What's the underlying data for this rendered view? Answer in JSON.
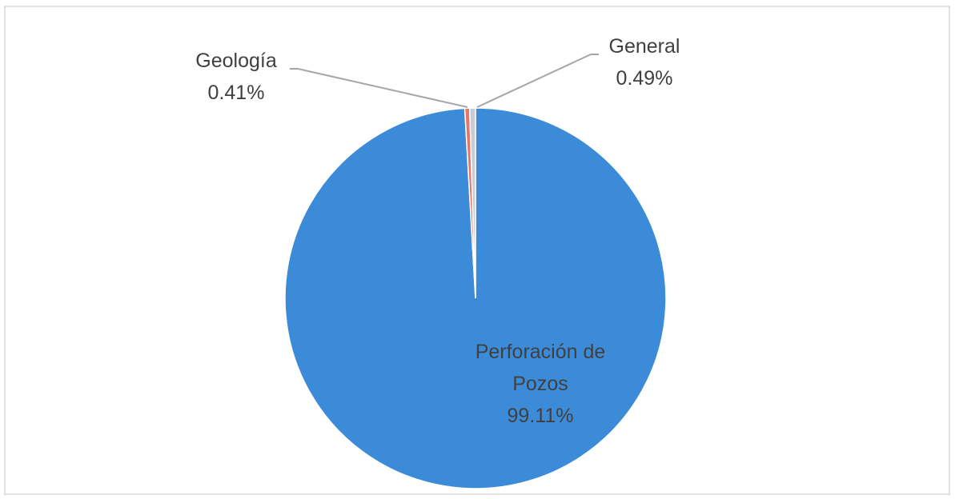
{
  "chart_data": {
    "type": "pie",
    "categories": [
      "Perforación de Pozos",
      "Geología",
      "General"
    ],
    "values": [
      99.11,
      0.41,
      0.49
    ],
    "value_labels": [
      "99.11%",
      "0.41%",
      "0.49%"
    ],
    "colors": [
      "#3b8bd9",
      "#e8746a",
      "#c9ccd2"
    ]
  }
}
